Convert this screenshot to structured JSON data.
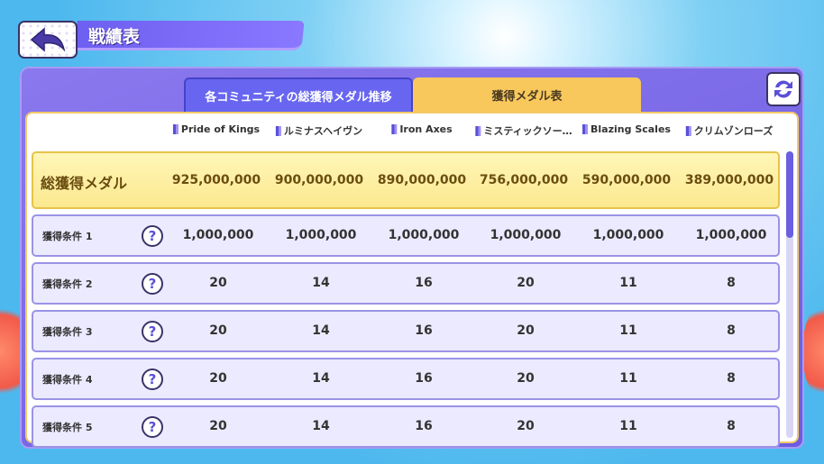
{
  "header": {
    "title": "戦績表",
    "back_icon": "back-arrow-icon"
  },
  "tabs": [
    {
      "label": "各コミュニティの総獲得メダル推移",
      "active": false
    },
    {
      "label": "獲得メダル表",
      "active": true
    }
  ],
  "refresh_icon": "refresh-icon",
  "columns": [
    "Pride of Kings",
    "ルミナスヘイヴン",
    "Iron Axes",
    "ミスティックソー…",
    "Blazing Scales",
    "クリムゾンローズ"
  ],
  "total": {
    "label": "総獲得メダル",
    "values": [
      "925,000,000",
      "900,000,000",
      "890,000,000",
      "756,000,000",
      "590,000,000",
      "389,000,000"
    ]
  },
  "rows": [
    {
      "label": "獲得条件 1",
      "values": [
        "1,000,000",
        "1,000,000",
        "1,000,000",
        "1,000,000",
        "1,000,000",
        "1,000,000"
      ]
    },
    {
      "label": "獲得条件 2",
      "values": [
        "20",
        "14",
        "16",
        "20",
        "11",
        "8"
      ]
    },
    {
      "label": "獲得条件 3",
      "values": [
        "20",
        "14",
        "16",
        "20",
        "11",
        "8"
      ]
    },
    {
      "label": "獲得条件 4",
      "values": [
        "20",
        "14",
        "16",
        "20",
        "11",
        "8"
      ]
    },
    {
      "label": "獲得条件 5",
      "values": [
        "20",
        "14",
        "16",
        "20",
        "11",
        "8"
      ]
    }
  ],
  "help_glyph": "?",
  "colors": {
    "accent": "#6c5ce0",
    "active_tab": "#f8c85c",
    "total_row": "#fbe98f"
  }
}
